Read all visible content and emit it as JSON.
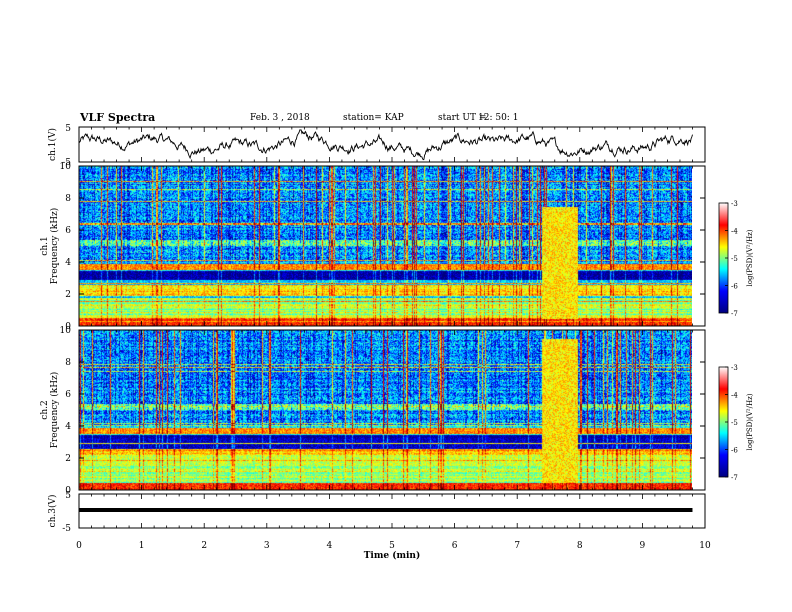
{
  "header": {
    "title": "VLF Spectra",
    "date": "Feb. 3 , 2018",
    "station": "station= KAP",
    "start_label": "start  UT =",
    "start_time": "12: 50: 1"
  },
  "chart_data": [
    {
      "type": "line",
      "name": "ch1-waveform",
      "ylabel": "ch.1(V)",
      "ylim": [
        -5,
        5
      ],
      "yticks": [
        "5",
        "-5"
      ],
      "xlim": [
        0,
        10
      ]
    },
    {
      "type": "heatmap",
      "name": "ch1-spectrogram",
      "ylabel_top": "ch.1",
      "ylabel": "Frequency (kHz)",
      "ylim": [
        0,
        10
      ],
      "yticks": [
        "0",
        "2",
        "4",
        "6",
        "8",
        "10"
      ],
      "xlim": [
        0,
        10
      ],
      "colorbar": {
        "label": "log(PSD)(V²/Hz)",
        "range": [
          -7,
          -3
        ],
        "ticks": [
          "-3",
          "-4",
          "-5",
          "-6",
          "-7"
        ]
      }
    },
    {
      "type": "heatmap",
      "name": "ch2-spectrogram",
      "ylabel_top": "ch.2",
      "ylabel": "Frequency (kHz)",
      "ylim": [
        0,
        10
      ],
      "yticks": [
        "0",
        "2",
        "4",
        "6",
        "8",
        "10"
      ],
      "xlim": [
        0,
        10
      ],
      "colorbar": {
        "label": "log(PSD)(V²/Hz)",
        "range": [
          -7,
          -3
        ],
        "ticks": [
          "-3",
          "-4",
          "-5",
          "-6",
          "-7"
        ]
      }
    },
    {
      "type": "line",
      "name": "ch3-waveform",
      "ylabel": "ch.3(V)",
      "ylim": [
        -5,
        5
      ],
      "yticks": [
        "5",
        "-5"
      ],
      "xlim": [
        0,
        10
      ],
      "xlabel": "Time  (min)",
      "xticks": [
        "0",
        "1",
        "2",
        "3",
        "4",
        "5",
        "6",
        "7",
        "8",
        "9",
        "10"
      ]
    }
  ],
  "colors": {
    "stops": [
      "#000080",
      "#0000ff",
      "#00ffff",
      "#ffff00",
      "#ff0000",
      "#ffffff"
    ]
  }
}
